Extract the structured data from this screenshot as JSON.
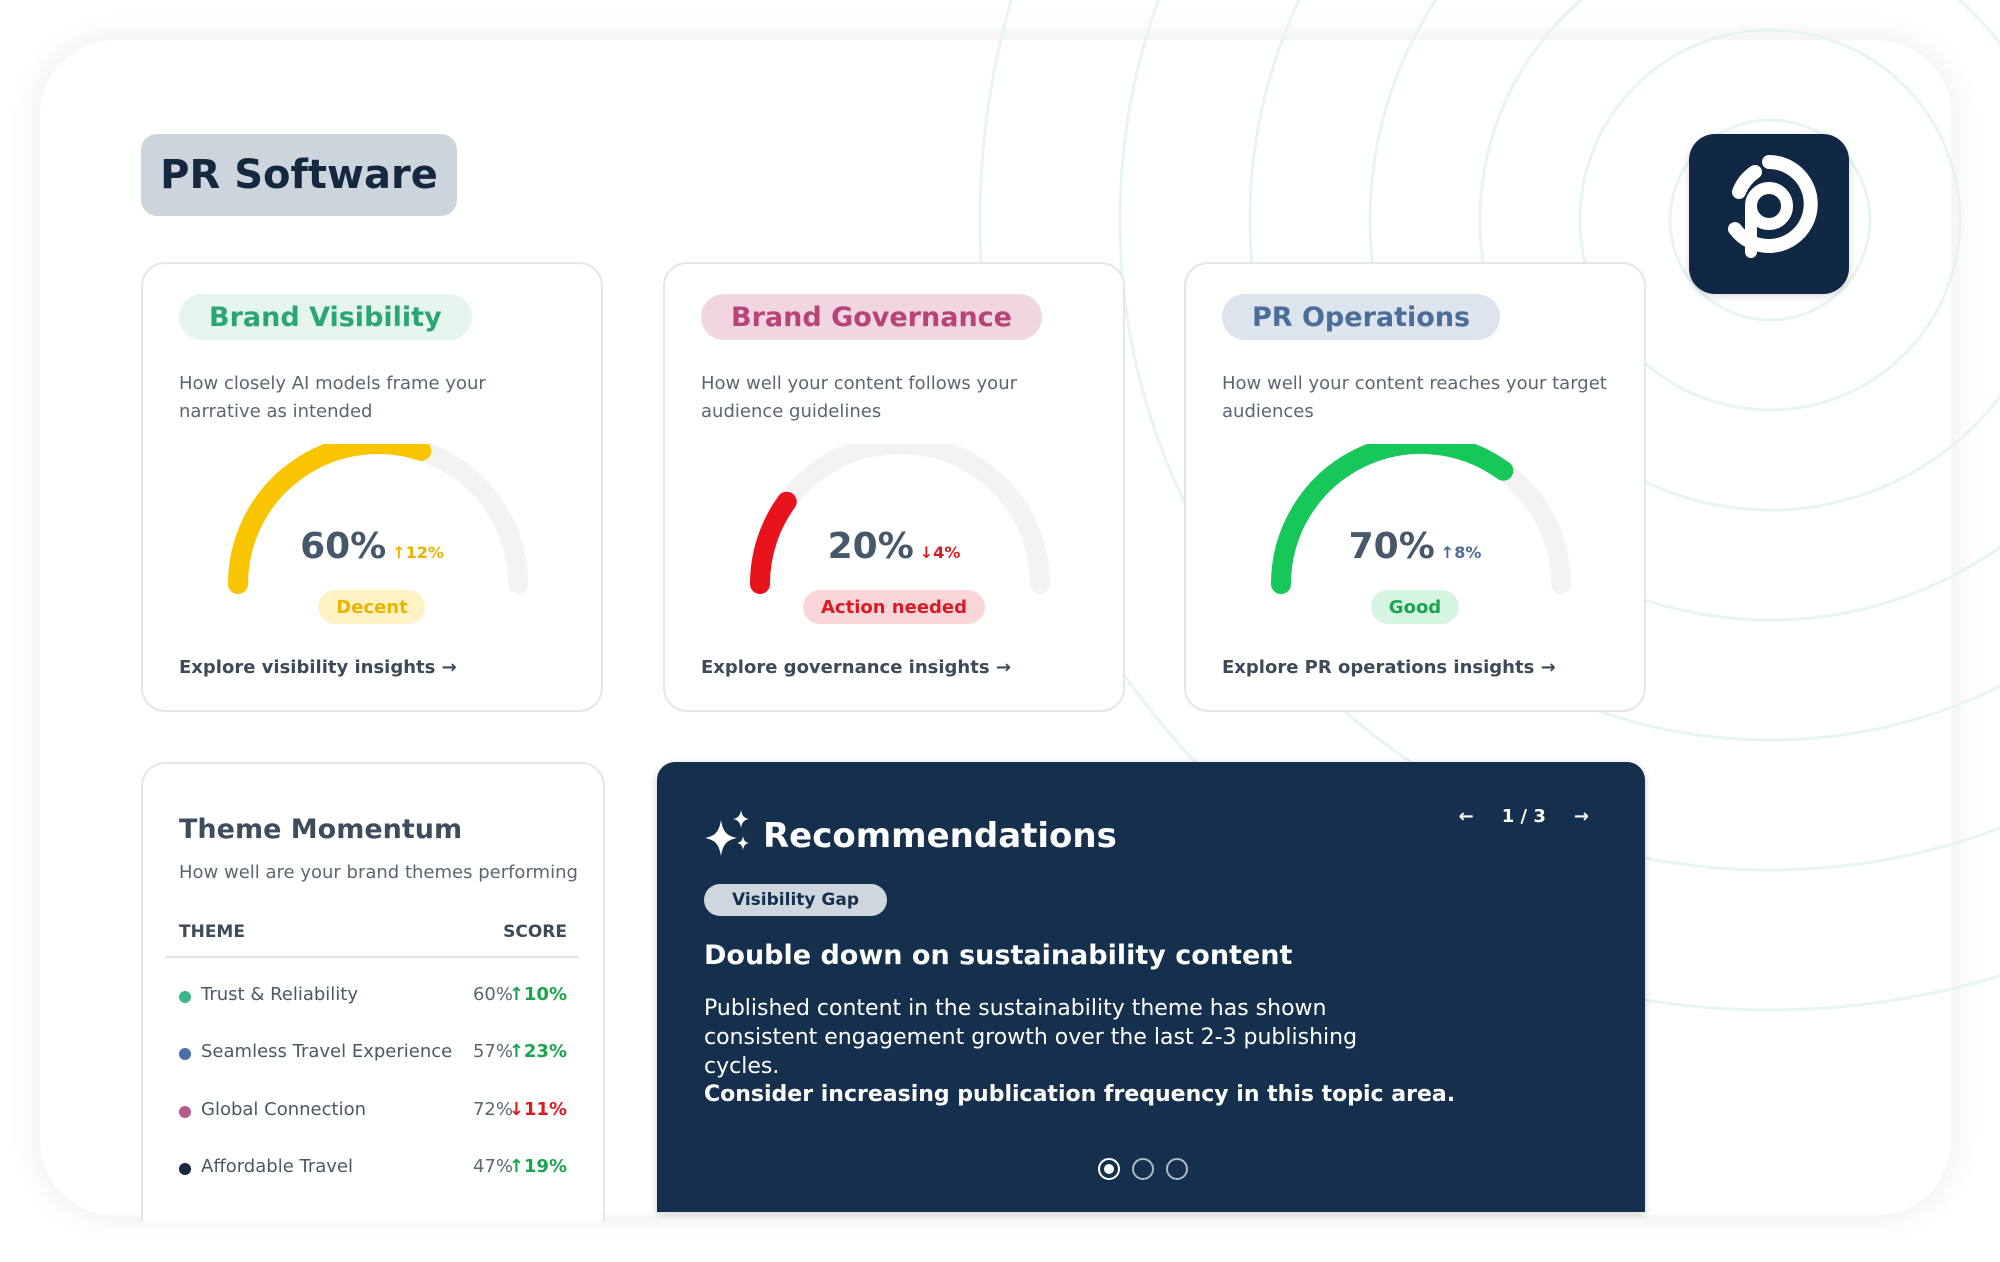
{
  "page": {
    "title": "PR Software"
  },
  "logo": {
    "icon": "pr-logo-icon",
    "bg_color": "#102843"
  },
  "metrics": [
    {
      "title": "Brand Visibility",
      "description": "How closely AI models frame your narrative as intended",
      "value": "60%",
      "fraction": 0.6,
      "delta": "↑12%",
      "status": "Decent",
      "explore": "Explore visibility insights →",
      "color": "#f9c400",
      "pill_bg": "#e6f4ee",
      "pill_color": "#2aa574",
      "status_bg": "#fdf2c4",
      "status_color": "#e8b400",
      "delta_color": "#e8b400"
    },
    {
      "title": "Brand Governance",
      "description": "How well your content follows your audience guidelines",
      "value": "20%",
      "fraction": 0.2,
      "delta": "↓4%",
      "status": "Action needed",
      "explore": "Explore governance insights →",
      "color": "#e8131b",
      "pill_bg": "#f1d5e1",
      "pill_color": "#b74377",
      "status_bg": "#fbd6d9",
      "status_color": "#d81b24",
      "delta_color": "#d81b24"
    },
    {
      "title": "PR Operations",
      "description": "How well your content reaches your target audiences",
      "value": "70%",
      "fraction": 0.7,
      "delta": "↑8%",
      "status": "Good",
      "explore": "Explore PR operations insights →",
      "color": "#17c75a",
      "pill_bg": "#dde4ee",
      "pill_color": "#4a6d99",
      "status_bg": "#d6f5e1",
      "status_color": "#19a44d",
      "delta_color": "#4a6d99"
    }
  ],
  "themes": {
    "title": "Theme Momentum",
    "subtitle": "How well are your brand themes performing",
    "col_theme": "THEME",
    "col_score": "SCORE",
    "rows": [
      {
        "name": "Trust & Reliability",
        "score": "60%",
        "change": "↑10%",
        "dot": "#3bb58a",
        "change_color": "#19a44d"
      },
      {
        "name": "Seamless Travel Experience",
        "score": "57%",
        "change": "↑23%",
        "dot": "#4a70a8",
        "change_color": "#19a44d"
      },
      {
        "name": "Global Connection",
        "score": "72%",
        "change": "↓11%",
        "dot": "#b45a8a",
        "change_color": "#d81b24"
      },
      {
        "name": "Affordable Travel",
        "score": "47%",
        "change": "↑19%",
        "dot": "#14283f",
        "change_color": "#19a44d"
      }
    ]
  },
  "recommendations": {
    "title": "Recommendations",
    "icon": "sparkles-icon",
    "nav_prev": "←",
    "nav_page": "1 / 3",
    "nav_next": "→",
    "tag": "Visibility Gap",
    "headline": "Double down on sustainability content",
    "body": "Published content in the sustainability theme has shown consistent engagement growth over the last 2-3 publishing cycles.",
    "cta": "Consider increasing publication frequency in this topic area.",
    "active_slide": 1,
    "total_slides": 3
  }
}
